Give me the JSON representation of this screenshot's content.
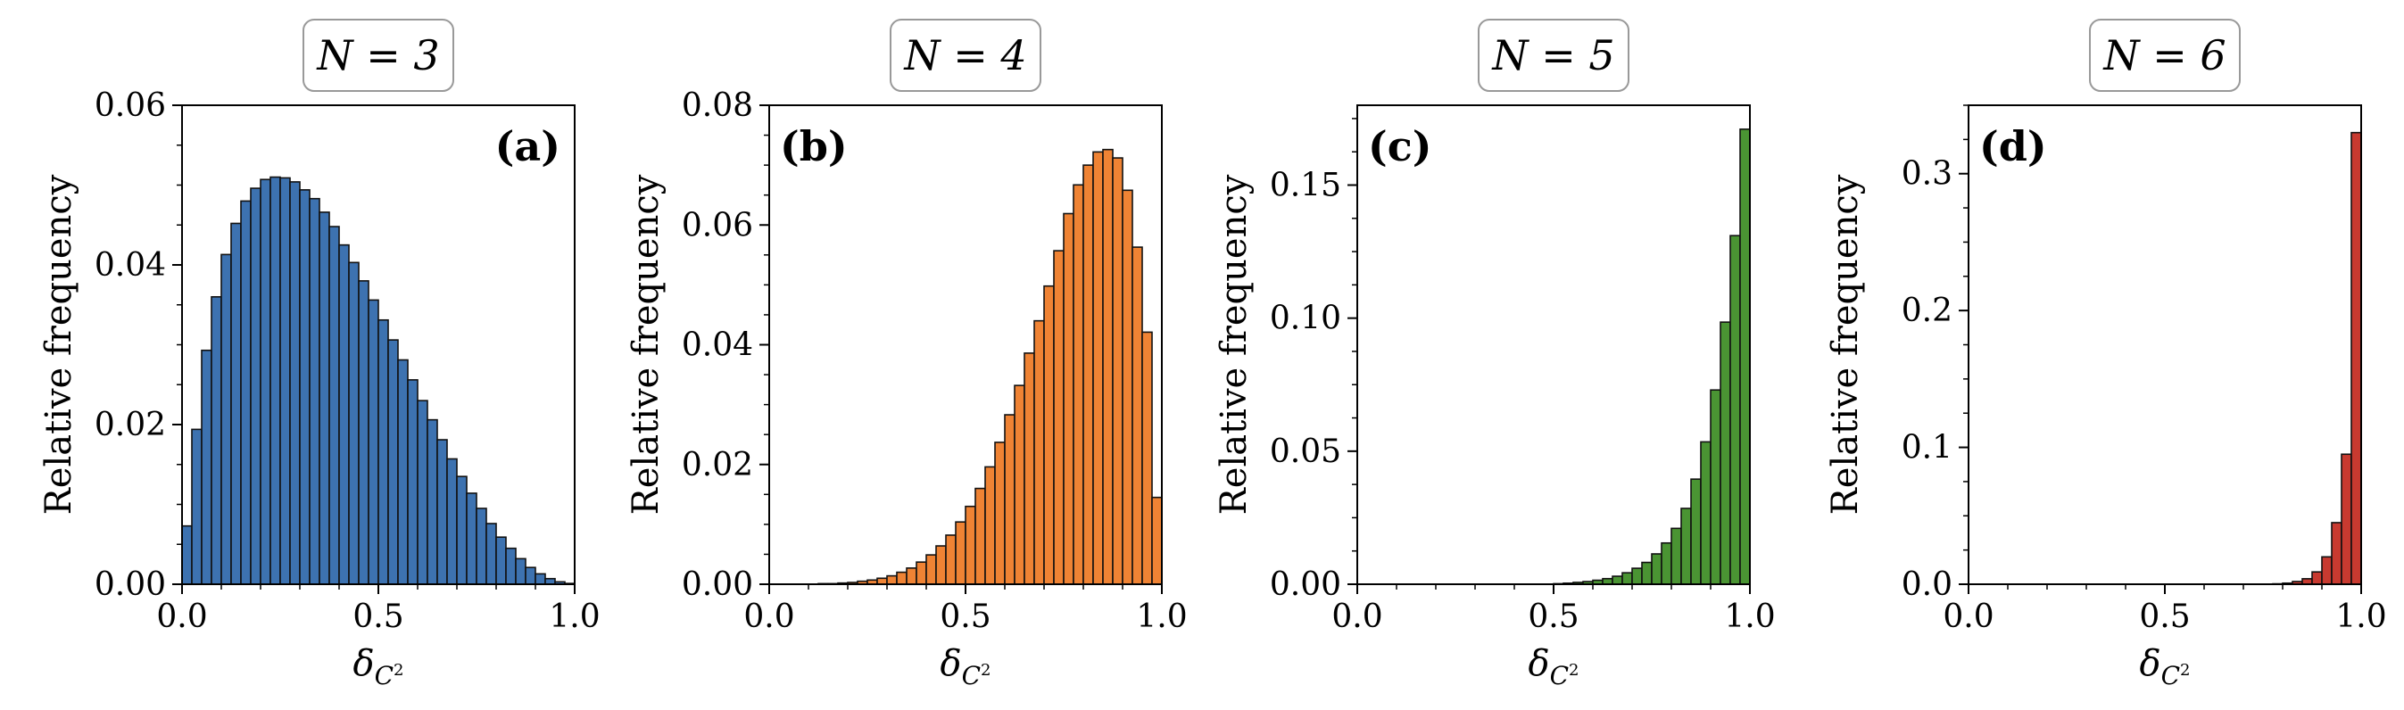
{
  "chart_data": [
    {
      "type": "bar",
      "title": "N = 3",
      "panel_label": "(a)",
      "color": "#3d72b0",
      "xlabel": "δ_C²",
      "ylabel": "Relative frequency",
      "xlim": [
        0,
        1
      ],
      "ylim": [
        0,
        0.06
      ],
      "xticks": [
        "0.0",
        "0.5",
        "1.0"
      ],
      "yticks": [
        "0.00",
        "0.02",
        "0.04",
        "0.06"
      ],
      "ytick_values": [
        0,
        0.02,
        0.04,
        0.06
      ],
      "bin_width": 0.025,
      "x": [
        0.0125,
        0.0375,
        0.0625,
        0.0875,
        0.1125,
        0.1375,
        0.1625,
        0.1875,
        0.2125,
        0.2375,
        0.2625,
        0.2875,
        0.3125,
        0.3375,
        0.3625,
        0.3875,
        0.4125,
        0.4375,
        0.4625,
        0.4875,
        0.5125,
        0.5375,
        0.5625,
        0.5875,
        0.6125,
        0.6375,
        0.6625,
        0.6875,
        0.7125,
        0.7375,
        0.7625,
        0.7875,
        0.8125,
        0.8375,
        0.8625,
        0.8875,
        0.9125,
        0.9375,
        0.9625,
        0.9875
      ],
      "values": [
        0.0073,
        0.0194,
        0.0293,
        0.036,
        0.0413,
        0.0452,
        0.048,
        0.0496,
        0.0507,
        0.051,
        0.0509,
        0.0504,
        0.0494,
        0.0483,
        0.0466,
        0.0448,
        0.0425,
        0.0403,
        0.038,
        0.0356,
        0.0331,
        0.0306,
        0.0281,
        0.0256,
        0.023,
        0.0206,
        0.0181,
        0.0157,
        0.0135,
        0.0114,
        0.0095,
        0.0076,
        0.0059,
        0.0045,
        0.0032,
        0.0021,
        0.0013,
        0.0007,
        0.0003,
        0.0001
      ]
    },
    {
      "type": "bar",
      "title": "N = 4",
      "panel_label": "(b)",
      "color": "#ef8334",
      "xlabel": "δ_C²",
      "ylabel": "Relative frequency",
      "xlim": [
        0,
        1
      ],
      "ylim": [
        0,
        0.08
      ],
      "xticks": [
        "0.0",
        "0.5",
        "1.0"
      ],
      "yticks": [
        "0.00",
        "0.02",
        "0.04",
        "0.06",
        "0.08"
      ],
      "ytick_values": [
        0,
        0.02,
        0.04,
        0.06,
        0.08
      ],
      "bin_width": 0.025,
      "x": [
        0.0125,
        0.0375,
        0.0625,
        0.0875,
        0.1125,
        0.1375,
        0.1625,
        0.1875,
        0.2125,
        0.2375,
        0.2625,
        0.2875,
        0.3125,
        0.3375,
        0.3625,
        0.3875,
        0.4125,
        0.4375,
        0.4625,
        0.4875,
        0.5125,
        0.5375,
        0.5625,
        0.5875,
        0.6125,
        0.6375,
        0.6625,
        0.6875,
        0.7125,
        0.7375,
        0.7625,
        0.7875,
        0.8125,
        0.8375,
        0.8625,
        0.8875,
        0.9125,
        0.9375,
        0.9625,
        0.9875
      ],
      "values": [
        0,
        0,
        0,
        0,
        0,
        0.0001,
        0.0001,
        0.0002,
        0.0003,
        0.0005,
        0.0007,
        0.001,
        0.0014,
        0.002,
        0.0027,
        0.0037,
        0.0049,
        0.0064,
        0.0082,
        0.0104,
        0.013,
        0.016,
        0.0196,
        0.0237,
        0.0283,
        0.0332,
        0.0386,
        0.044,
        0.0498,
        0.0557,
        0.0619,
        0.0667,
        0.07,
        0.0722,
        0.0726,
        0.0712,
        0.0658,
        0.0563,
        0.0421,
        0.0145
      ]
    },
    {
      "type": "bar",
      "title": "N = 5",
      "panel_label": "(c)",
      "color": "#4a9433",
      "xlabel": "δ_C²",
      "ylabel": "Relative frequency",
      "xlim": [
        0,
        1
      ],
      "ylim": [
        0,
        0.18
      ],
      "xticks": [
        "0.0",
        "0.5",
        "1.0"
      ],
      "yticks": [
        "0.00",
        "0.05",
        "0.10",
        "0.15"
      ],
      "ytick_values": [
        0,
        0.05,
        0.1,
        0.15
      ],
      "bin_width": 0.025,
      "x": [
        0.0125,
        0.0375,
        0.0625,
        0.0875,
        0.1125,
        0.1375,
        0.1625,
        0.1875,
        0.2125,
        0.2375,
        0.2625,
        0.2875,
        0.3125,
        0.3375,
        0.3625,
        0.3875,
        0.4125,
        0.4375,
        0.4625,
        0.4875,
        0.5125,
        0.5375,
        0.5625,
        0.5875,
        0.6125,
        0.6375,
        0.6625,
        0.6875,
        0.7125,
        0.7375,
        0.7625,
        0.7875,
        0.8125,
        0.8375,
        0.8625,
        0.8875,
        0.9125,
        0.9375,
        0.9625,
        0.9875
      ],
      "values": [
        0,
        0,
        0,
        0,
        0,
        0,
        0,
        0,
        0,
        0,
        0,
        0,
        0,
        0,
        0,
        0,
        0,
        0,
        0,
        0,
        0.0002,
        0.0004,
        0.0007,
        0.001,
        0.0015,
        0.0021,
        0.003,
        0.0043,
        0.006,
        0.0082,
        0.0114,
        0.0155,
        0.021,
        0.0285,
        0.0395,
        0.0535,
        0.073,
        0.0985,
        0.131,
        0.171
      ]
    },
    {
      "type": "bar",
      "title": "N = 6",
      "panel_label": "(d)",
      "color": "#c83a30",
      "xlabel": "δ_C²",
      "ylabel": "Relative frequency",
      "xlim": [
        0,
        1
      ],
      "ylim": [
        0,
        0.35
      ],
      "xticks": [
        "0.0",
        "0.5",
        "1.0"
      ],
      "yticks": [
        "0.0",
        "0.1",
        "0.2",
        "0.3"
      ],
      "ytick_values": [
        0,
        0.1,
        0.2,
        0.3
      ],
      "bin_width": 0.025,
      "x": [
        0.0125,
        0.0375,
        0.0625,
        0.0875,
        0.1125,
        0.1375,
        0.1625,
        0.1875,
        0.2125,
        0.2375,
        0.2625,
        0.2875,
        0.3125,
        0.3375,
        0.3625,
        0.3875,
        0.4125,
        0.4375,
        0.4625,
        0.4875,
        0.5125,
        0.5375,
        0.5625,
        0.5875,
        0.6125,
        0.6375,
        0.6625,
        0.6875,
        0.7125,
        0.7375,
        0.7625,
        0.7875,
        0.8125,
        0.8375,
        0.8625,
        0.8875,
        0.9125,
        0.9375,
        0.9625,
        0.9875
      ],
      "values": [
        0,
        0,
        0,
        0,
        0,
        0,
        0,
        0,
        0,
        0,
        0,
        0,
        0,
        0,
        0,
        0,
        0,
        0,
        0,
        0,
        0,
        0,
        0,
        0,
        0,
        0,
        0,
        0,
        0,
        0,
        0,
        0.0003,
        0.0008,
        0.002,
        0.004,
        0.009,
        0.02,
        0.045,
        0.095,
        0.33
      ]
    }
  ]
}
